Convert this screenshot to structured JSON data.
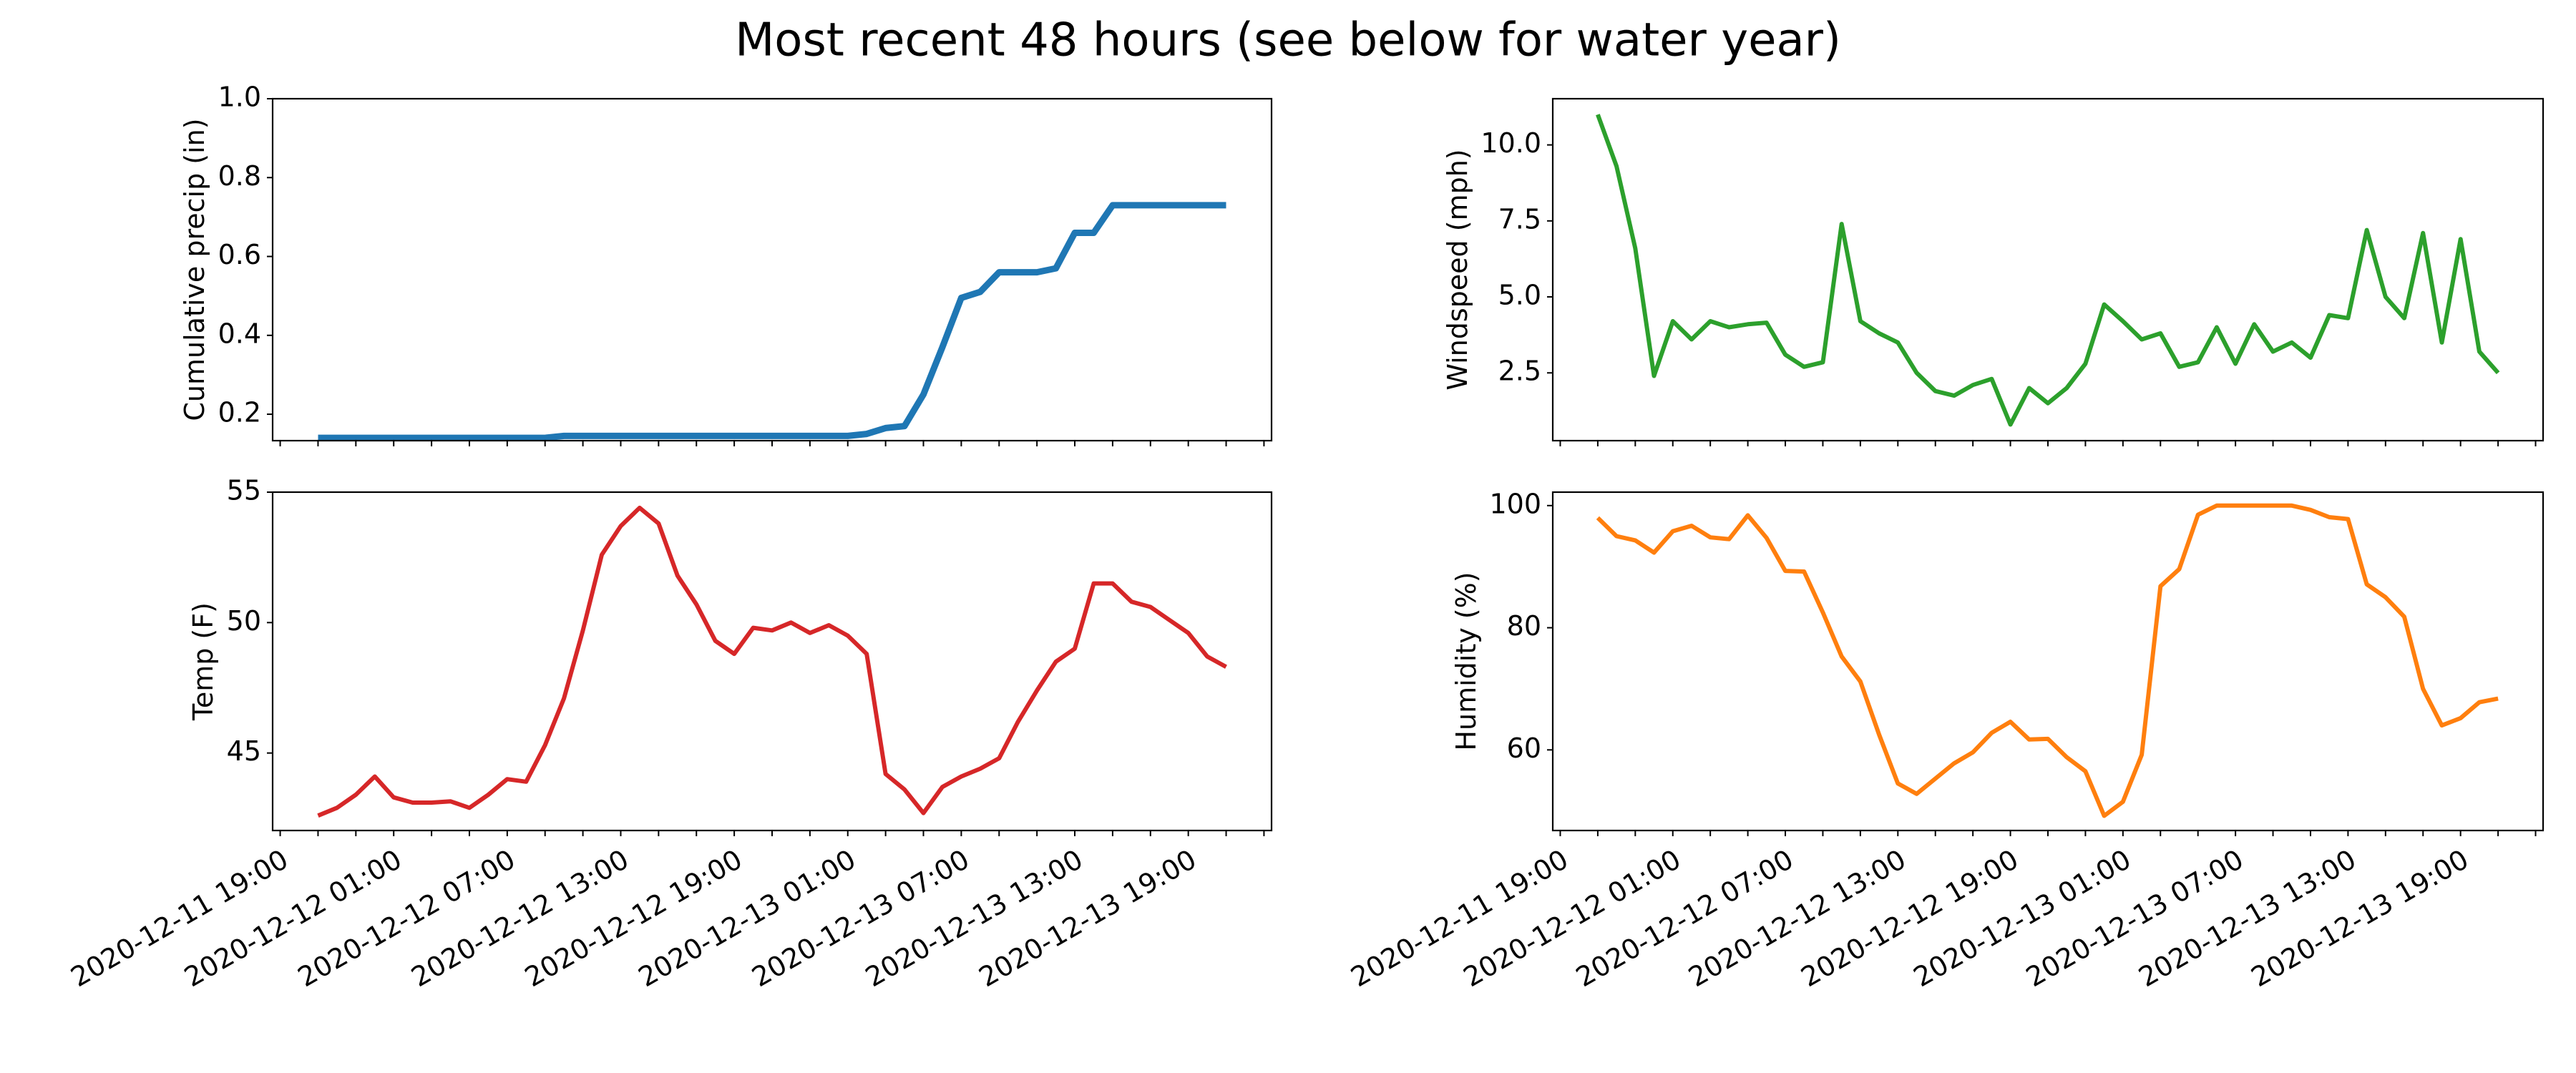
{
  "title": "Most recent 48 hours (see below for water year)",
  "chart_data": [
    {
      "type": "line",
      "ylabel": "Cumulative precip (in)",
      "color": "#1f77b4",
      "show_xtick_labels": false,
      "x": [
        "2020-12-11 21:00",
        "2020-12-11 22:00",
        "2020-12-11 23:00",
        "2020-12-12 00:00",
        "2020-12-12 01:00",
        "2020-12-12 02:00",
        "2020-12-12 03:00",
        "2020-12-12 04:00",
        "2020-12-12 05:00",
        "2020-12-12 06:00",
        "2020-12-12 07:00",
        "2020-12-12 08:00",
        "2020-12-12 09:00",
        "2020-12-12 10:00",
        "2020-12-12 11:00",
        "2020-12-12 12:00",
        "2020-12-12 13:00",
        "2020-12-12 14:00",
        "2020-12-12 15:00",
        "2020-12-12 16:00",
        "2020-12-12 17:00",
        "2020-12-12 18:00",
        "2020-12-12 19:00",
        "2020-12-12 20:00",
        "2020-12-12 21:00",
        "2020-12-12 22:00",
        "2020-12-12 23:00",
        "2020-12-13 00:00",
        "2020-12-13 01:00",
        "2020-12-13 02:00",
        "2020-12-13 03:00",
        "2020-12-13 04:00",
        "2020-12-13 05:00",
        "2020-12-13 06:00",
        "2020-12-13 07:00",
        "2020-12-13 08:00",
        "2020-12-13 09:00",
        "2020-12-13 10:00",
        "2020-12-13 11:00",
        "2020-12-13 12:00",
        "2020-12-13 13:00",
        "2020-12-13 14:00",
        "2020-12-13 15:00",
        "2020-12-13 16:00",
        "2020-12-13 17:00",
        "2020-12-13 18:00",
        "2020-12-13 19:00",
        "2020-12-13 20:00",
        "2020-12-13 21:00"
      ],
      "values": [
        0.14,
        0.14,
        0.14,
        0.14,
        0.14,
        0.14,
        0.14,
        0.14,
        0.14,
        0.14,
        0.14,
        0.14,
        0.14,
        0.145,
        0.145,
        0.145,
        0.145,
        0.145,
        0.145,
        0.145,
        0.145,
        0.145,
        0.145,
        0.145,
        0.145,
        0.145,
        0.145,
        0.145,
        0.145,
        0.15,
        0.165,
        0.17,
        0.25,
        0.37,
        0.495,
        0.51,
        0.56,
        0.56,
        0.56,
        0.57,
        0.66,
        0.66,
        0.73,
        0.73,
        0.73,
        0.73,
        0.73,
        0.73,
        0.73
      ],
      "xlim": [
        "2020-12-11 18:36",
        "2020-12-13 23:24"
      ],
      "xticks": [
        "2020-12-11 19:00",
        "2020-12-12 01:00",
        "2020-12-12 07:00",
        "2020-12-12 13:00",
        "2020-12-12 19:00",
        "2020-12-13 01:00",
        "2020-12-13 07:00",
        "2020-12-13 13:00",
        "2020-12-13 19:00"
      ],
      "xminorticks": [
        "2020-12-11 21:00",
        "2020-12-11 23:00",
        "2020-12-12 03:00",
        "2020-12-12 05:00",
        "2020-12-12 09:00",
        "2020-12-12 11:00",
        "2020-12-12 15:00",
        "2020-12-12 17:00",
        "2020-12-12 21:00",
        "2020-12-12 23:00",
        "2020-12-13 03:00",
        "2020-12-13 05:00",
        "2020-12-13 09:00",
        "2020-12-13 11:00",
        "2020-12-13 15:00",
        "2020-12-13 17:00",
        "2020-12-13 21:00",
        "2020-12-13 23:00"
      ],
      "ylim": [
        0.133,
        1.0
      ],
      "yticks": [
        0.2,
        0.4,
        0.6,
        0.8,
        {
          "value": 1,
          "label": "1.0"
        }
      ]
    },
    {
      "type": "line",
      "ylabel": "Windspeed (mph)",
      "color": "#2ca02c",
      "show_xtick_labels": false,
      "x": [
        "2020-12-11 21:00",
        "2020-12-11 22:00",
        "2020-12-11 23:00",
        "2020-12-12 00:00",
        "2020-12-12 01:00",
        "2020-12-12 02:00",
        "2020-12-12 03:00",
        "2020-12-12 04:00",
        "2020-12-12 05:00",
        "2020-12-12 06:00",
        "2020-12-12 07:00",
        "2020-12-12 08:00",
        "2020-12-12 09:00",
        "2020-12-12 10:00",
        "2020-12-12 11:00",
        "2020-12-12 12:00",
        "2020-12-12 13:00",
        "2020-12-12 14:00",
        "2020-12-12 15:00",
        "2020-12-12 16:00",
        "2020-12-12 17:00",
        "2020-12-12 18:00",
        "2020-12-12 19:00",
        "2020-12-12 20:00",
        "2020-12-12 21:00",
        "2020-12-12 22:00",
        "2020-12-12 23:00",
        "2020-12-13 00:00",
        "2020-12-13 01:00",
        "2020-12-13 02:00",
        "2020-12-13 03:00",
        "2020-12-13 04:00",
        "2020-12-13 05:00",
        "2020-12-13 06:00",
        "2020-12-13 07:00",
        "2020-12-13 08:00",
        "2020-12-13 09:00",
        "2020-12-13 10:00",
        "2020-12-13 11:00",
        "2020-12-13 12:00",
        "2020-12-13 13:00",
        "2020-12-13 14:00",
        "2020-12-13 15:00",
        "2020-12-13 16:00",
        "2020-12-13 17:00",
        "2020-12-13 18:00",
        "2020-12-13 19:00",
        "2020-12-13 20:00",
        "2020-12-13 21:00"
      ],
      "values": [
        11.0,
        9.3,
        6.6,
        2.4,
        4.2,
        3.6,
        4.2,
        4.0,
        4.1,
        4.15,
        3.1,
        2.7,
        2.85,
        7.4,
        4.2,
        3.8,
        3.5,
        2.5,
        1.9,
        1.75,
        2.1,
        2.3,
        0.8,
        2.0,
        1.5,
        2.0,
        2.8,
        4.75,
        4.2,
        3.6,
        3.8,
        2.7,
        2.85,
        4.0,
        2.8,
        4.1,
        3.2,
        3.5,
        3.0,
        4.4,
        4.3,
        7.2,
        5.0,
        4.3,
        7.1,
        3.5,
        6.9,
        3.2,
        2.5
      ],
      "xlim": [
        "2020-12-11 18:36",
        "2020-12-13 23:24"
      ],
      "xticks": [
        "2020-12-11 19:00",
        "2020-12-12 01:00",
        "2020-12-12 07:00",
        "2020-12-12 13:00",
        "2020-12-12 19:00",
        "2020-12-13 01:00",
        "2020-12-13 07:00",
        "2020-12-13 13:00",
        "2020-12-13 19:00"
      ],
      "xminorticks": [
        "2020-12-11 21:00",
        "2020-12-11 23:00",
        "2020-12-12 03:00",
        "2020-12-12 05:00",
        "2020-12-12 09:00",
        "2020-12-12 11:00",
        "2020-12-12 15:00",
        "2020-12-12 17:00",
        "2020-12-12 21:00",
        "2020-12-12 23:00",
        "2020-12-13 03:00",
        "2020-12-13 05:00",
        "2020-12-13 09:00",
        "2020-12-13 11:00",
        "2020-12-13 15:00",
        "2020-12-13 17:00",
        "2020-12-13 21:00",
        "2020-12-13 23:00"
      ],
      "ylim": [
        0.27,
        11.52
      ],
      "yticks": [
        2.5,
        {
          "value": 5,
          "label": "5.0"
        },
        7.5,
        {
          "value": 10,
          "label": "10.0"
        }
      ]
    },
    {
      "type": "line",
      "ylabel": "Temp (F)",
      "color": "#d62728",
      "show_xtick_labels": true,
      "x": [
        "2020-12-11 21:00",
        "2020-12-11 22:00",
        "2020-12-11 23:00",
        "2020-12-12 00:00",
        "2020-12-12 01:00",
        "2020-12-12 02:00",
        "2020-12-12 03:00",
        "2020-12-12 04:00",
        "2020-12-12 05:00",
        "2020-12-12 06:00",
        "2020-12-12 07:00",
        "2020-12-12 08:00",
        "2020-12-12 09:00",
        "2020-12-12 10:00",
        "2020-12-12 11:00",
        "2020-12-12 12:00",
        "2020-12-12 13:00",
        "2020-12-12 14:00",
        "2020-12-12 15:00",
        "2020-12-12 16:00",
        "2020-12-12 17:00",
        "2020-12-12 18:00",
        "2020-12-12 19:00",
        "2020-12-12 20:00",
        "2020-12-12 21:00",
        "2020-12-12 22:00",
        "2020-12-12 23:00",
        "2020-12-13 00:00",
        "2020-12-13 01:00",
        "2020-12-13 02:00",
        "2020-12-13 03:00",
        "2020-12-13 04:00",
        "2020-12-13 05:00",
        "2020-12-13 06:00",
        "2020-12-13 07:00",
        "2020-12-13 08:00",
        "2020-12-13 09:00",
        "2020-12-13 10:00",
        "2020-12-13 11:00",
        "2020-12-13 12:00",
        "2020-12-13 13:00",
        "2020-12-13 14:00",
        "2020-12-13 15:00",
        "2020-12-13 16:00",
        "2020-12-13 17:00",
        "2020-12-13 18:00",
        "2020-12-13 19:00",
        "2020-12-13 20:00",
        "2020-12-13 21:00"
      ],
      "values": [
        42.6,
        42.9,
        43.4,
        44.1,
        43.3,
        43.1,
        43.1,
        43.15,
        42.9,
        43.4,
        44.0,
        43.9,
        45.3,
        47.1,
        49.7,
        52.6,
        53.7,
        54.4,
        53.8,
        51.8,
        50.7,
        49.3,
        48.8,
        49.8,
        49.7,
        50.0,
        49.6,
        49.9,
        49.5,
        48.8,
        44.2,
        43.6,
        42.7,
        43.7,
        44.1,
        44.4,
        44.8,
        46.2,
        47.4,
        48.5,
        49.0,
        51.5,
        51.5,
        50.8,
        50.6,
        50.1,
        49.6,
        48.7,
        48.3
      ],
      "xlim": [
        "2020-12-11 18:36",
        "2020-12-13 23:24"
      ],
      "xticks": [
        "2020-12-11 19:00",
        "2020-12-12 01:00",
        "2020-12-12 07:00",
        "2020-12-12 13:00",
        "2020-12-12 19:00",
        "2020-12-13 01:00",
        "2020-12-13 07:00",
        "2020-12-13 13:00",
        "2020-12-13 19:00"
      ],
      "xminorticks": [
        "2020-12-11 21:00",
        "2020-12-11 23:00",
        "2020-12-12 03:00",
        "2020-12-12 05:00",
        "2020-12-12 09:00",
        "2020-12-12 11:00",
        "2020-12-12 15:00",
        "2020-12-12 17:00",
        "2020-12-12 21:00",
        "2020-12-12 23:00",
        "2020-12-13 03:00",
        "2020-12-13 05:00",
        "2020-12-13 09:00",
        "2020-12-13 11:00",
        "2020-12-13 15:00",
        "2020-12-13 17:00",
        "2020-12-13 21:00",
        "2020-12-13 23:00"
      ],
      "ylim": [
        42.03,
        55
      ],
      "yticks": [
        45,
        50,
        55
      ]
    },
    {
      "type": "line",
      "ylabel": "Humidity (%)",
      "color": "#ff7f0e",
      "show_xtick_labels": true,
      "x": [
        "2020-12-11 21:00",
        "2020-12-11 22:00",
        "2020-12-11 23:00",
        "2020-12-12 00:00",
        "2020-12-12 01:00",
        "2020-12-12 02:00",
        "2020-12-12 03:00",
        "2020-12-12 04:00",
        "2020-12-12 05:00",
        "2020-12-12 06:00",
        "2020-12-12 07:00",
        "2020-12-12 08:00",
        "2020-12-12 09:00",
        "2020-12-12 10:00",
        "2020-12-12 11:00",
        "2020-12-12 12:00",
        "2020-12-12 13:00",
        "2020-12-12 14:00",
        "2020-12-12 15:00",
        "2020-12-12 16:00",
        "2020-12-12 17:00",
        "2020-12-12 18:00",
        "2020-12-12 19:00",
        "2020-12-12 20:00",
        "2020-12-12 21:00",
        "2020-12-12 22:00",
        "2020-12-12 23:00",
        "2020-12-13 00:00",
        "2020-12-13 01:00",
        "2020-12-13 02:00",
        "2020-12-13 03:00",
        "2020-12-13 04:00",
        "2020-12-13 05:00",
        "2020-12-13 06:00",
        "2020-12-13 07:00",
        "2020-12-13 08:00",
        "2020-12-13 09:00",
        "2020-12-13 10:00",
        "2020-12-13 11:00",
        "2020-12-13 12:00",
        "2020-12-13 13:00",
        "2020-12-13 14:00",
        "2020-12-13 15:00",
        "2020-12-13 16:00",
        "2020-12-13 17:00",
        "2020-12-13 18:00",
        "2020-12-13 19:00",
        "2020-12-13 20:00",
        "2020-12-13 21:00"
      ],
      "values": [
        98,
        95,
        94.3,
        92.3,
        95.8,
        96.7,
        94.8,
        94.5,
        98.4,
        94.7,
        89.3,
        89.2,
        82.5,
        75.3,
        71.2,
        62.5,
        54.5,
        52.8,
        55.3,
        57.8,
        59.6,
        62.8,
        64.6,
        61.7,
        61.8,
        58.8,
        56.5,
        49.2,
        51.5,
        59.2,
        86.8,
        89.6,
        98.5,
        100,
        100,
        100,
        100,
        100,
        99.3,
        98.1,
        97.8,
        87.1,
        85,
        81.8,
        70,
        64,
        65.2,
        67.8,
        68.4
      ],
      "xlim": [
        "2020-12-11 18:36",
        "2020-12-13 23:24"
      ],
      "xticks": [
        "2020-12-11 19:00",
        "2020-12-12 01:00",
        "2020-12-12 07:00",
        "2020-12-12 13:00",
        "2020-12-12 19:00",
        "2020-12-13 01:00",
        "2020-12-13 07:00",
        "2020-12-13 13:00",
        "2020-12-13 19:00"
      ],
      "xminorticks": [
        "2020-12-11 21:00",
        "2020-12-11 23:00",
        "2020-12-12 03:00",
        "2020-12-12 05:00",
        "2020-12-12 09:00",
        "2020-12-12 11:00",
        "2020-12-12 15:00",
        "2020-12-12 17:00",
        "2020-12-12 21:00",
        "2020-12-12 23:00",
        "2020-12-13 03:00",
        "2020-12-13 05:00",
        "2020-12-13 09:00",
        "2020-12-13 11:00",
        "2020-12-13 15:00",
        "2020-12-13 17:00",
        "2020-12-13 21:00",
        "2020-12-13 23:00"
      ],
      "ylim": [
        46.8,
        102.2
      ],
      "yticks": [
        60,
        80,
        100
      ]
    }
  ]
}
